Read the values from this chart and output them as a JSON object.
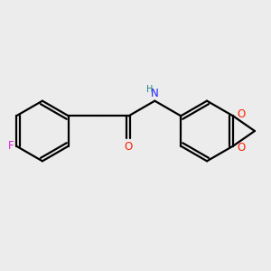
{
  "background_color": "#ececec",
  "bond_color": "#000000",
  "bond_width": 1.6,
  "atom_colors": {
    "F": "#e020e0",
    "O": "#ff2000",
    "N": "#2020ff",
    "H": "#208080",
    "C": "#000000"
  },
  "font_size_atoms": 8.5,
  "font_size_H": 7.0
}
